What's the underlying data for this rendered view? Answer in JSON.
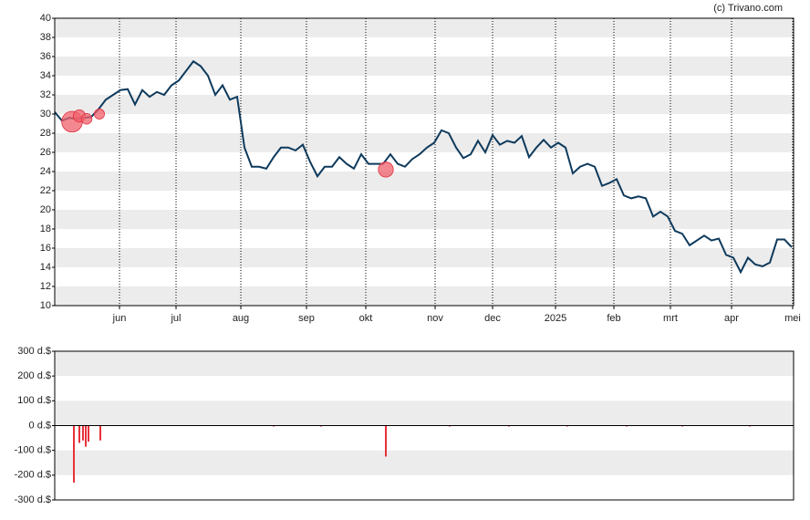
{
  "credit": "(c) Trivano.com",
  "chart_data": [
    {
      "type": "line",
      "color": "#0e3a5c",
      "xlim": [
        0,
        101.25
      ],
      "ylim": [
        10,
        40
      ],
      "yticks": [
        10,
        12,
        14,
        16,
        18,
        20,
        22,
        24,
        26,
        28,
        30,
        32,
        34,
        36,
        38,
        40
      ],
      "grid": "bands",
      "xticks": [
        {
          "value": 8.875,
          "label": "jun"
        },
        {
          "value": 16.625,
          "label": "jul"
        },
        {
          "value": 25.5,
          "label": "aug"
        },
        {
          "value": 34.5,
          "label": "sep"
        },
        {
          "value": 42.625,
          "label": "okt"
        },
        {
          "value": 52.125,
          "label": "nov"
        },
        {
          "value": 60,
          "label": "dec"
        },
        {
          "value": 68.625,
          "label": "2025"
        },
        {
          "value": 76.625,
          "label": "feb"
        },
        {
          "value": 84.375,
          "label": "mrt"
        },
        {
          "value": 92.75,
          "label": "apr"
        },
        {
          "value": 101.125,
          "label": "mei"
        }
      ],
      "values": [
        30.2,
        29.3,
        29.6,
        29.5,
        29.6,
        29.7,
        30.5,
        31.5,
        32.0,
        32.5,
        32.6,
        31.0,
        32.5,
        31.8,
        32.3,
        32.0,
        33.0,
        33.5,
        34.5,
        35.5,
        35.0,
        34.0,
        32.0,
        33.0,
        31.5,
        31.8,
        26.5,
        24.5,
        24.5,
        24.3,
        25.5,
        26.5,
        26.5,
        26.2,
        26.8,
        25.0,
        23.5,
        24.5,
        24.5,
        25.5,
        24.8,
        24.3,
        25.8,
        24.8,
        24.8,
        24.8,
        25.8,
        24.8,
        24.5,
        25.3,
        25.8,
        26.5,
        27.0,
        28.3,
        28.0,
        26.5,
        25.4,
        25.8,
        27.2,
        26.0,
        27.8,
        26.8,
        27.2,
        27.0,
        27.7,
        25.5,
        26.5,
        27.3,
        26.5,
        27.0,
        26.5,
        23.8,
        24.5,
        24.8,
        24.5,
        22.5,
        22.8,
        23.2,
        21.5,
        21.2,
        21.4,
        21.2,
        19.3,
        19.8,
        19.3,
        17.8,
        17.5,
        16.3,
        16.8,
        17.3,
        16.8,
        17.0,
        15.3,
        15.0,
        13.5,
        15.0,
        14.3,
        14.1,
        14.5,
        16.9,
        16.9,
        16.1
      ],
      "bubbles": {
        "color": "#f0606b",
        "x": [
          2.375,
          3.375,
          4.375,
          6.125,
          45.375
        ],
        "values": [
          29.2,
          29.8,
          29.5,
          30.0,
          24.2
        ],
        "sizes": [
          230,
          80,
          60,
          55,
          120
        ]
      }
    },
    {
      "type": "bar",
      "color": "#e8303a",
      "xlim": [
        0,
        101.25
      ],
      "ylim": [
        -300,
        300
      ],
      "grid": "bands",
      "yticks": [
        {
          "value": -300,
          "label": "-300 d.$"
        },
        {
          "value": -200,
          "label": "-200 d.$"
        },
        {
          "value": -100,
          "label": "-100 d.$"
        },
        {
          "value": 0,
          "label": "0 d.$"
        },
        {
          "value": 100,
          "label": "100 d.$"
        },
        {
          "value": 200,
          "label": "200 d.$"
        },
        {
          "value": 300,
          "label": "300 d.$"
        }
      ],
      "x": [
        2.625,
        3.375,
        3.875,
        4.25,
        4.625,
        6.25,
        30,
        36.5,
        45.375,
        54.125,
        62.25,
        70.25,
        78.375,
        86,
        95.25
      ],
      "values": [
        -230,
        -70,
        -60,
        -85,
        -65,
        -60,
        -3,
        -3,
        -125,
        -3,
        -3,
        -3,
        -3,
        -3,
        -3
      ]
    }
  ]
}
